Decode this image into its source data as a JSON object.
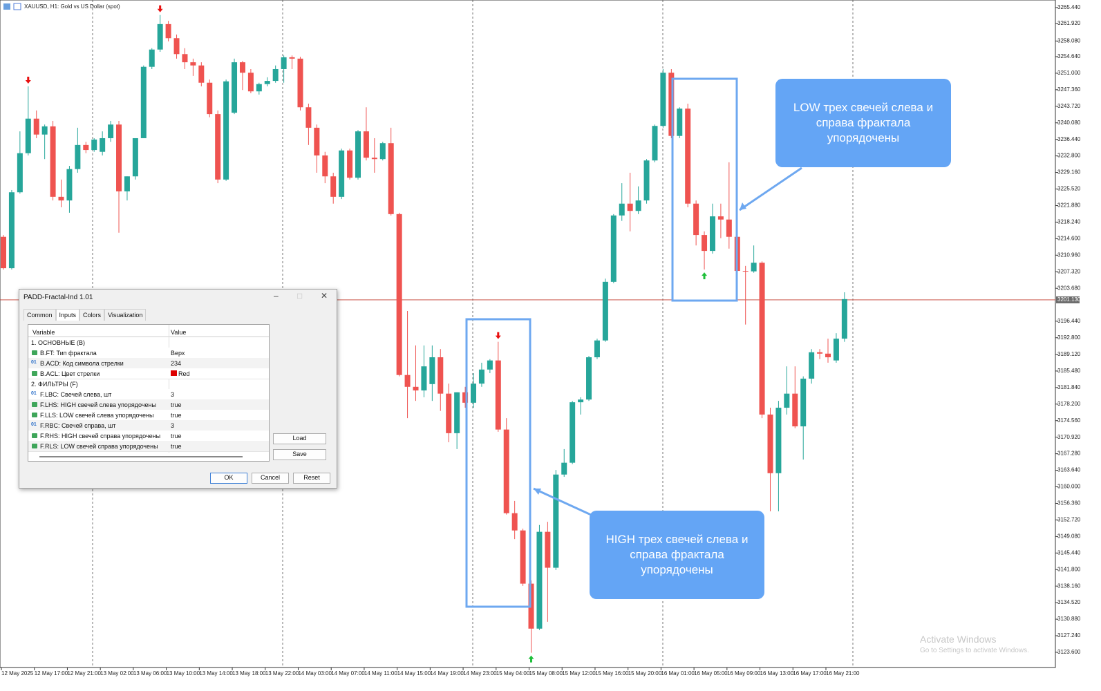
{
  "header": {
    "title": "XAUUSD, H1:  Gold vs US Dollar (spot)"
  },
  "chart_data": {
    "type": "candlestick",
    "categories": [
      "12 May 2025",
      null,
      null,
      null,
      "12 May 17:00",
      null,
      null,
      null,
      "12 May 21:00",
      null,
      null,
      null,
      "13 May 02:00",
      null,
      null,
      null,
      "13 May 06:00",
      null,
      null,
      null,
      "13 May 10:00",
      null,
      null,
      null,
      "13 May 14:00",
      null,
      null,
      null,
      "13 May 18:00",
      null,
      null,
      null,
      "13 May 22:00",
      null,
      null,
      null,
      "14 May 03:00",
      null,
      null,
      null,
      "14 May 07:00",
      null,
      null,
      null,
      "14 May 11:00",
      null,
      null,
      null,
      "14 May 15:00",
      null,
      null,
      null,
      "14 May 19:00",
      null,
      null,
      null,
      "14 May 23:00",
      null,
      null,
      null,
      "15 May 04:00",
      null,
      null,
      null,
      "15 May 08:00",
      null,
      null,
      null,
      "15 May 12:00",
      null,
      null,
      null,
      "15 May 16:00",
      null,
      null,
      null,
      "15 May 20:00",
      null,
      null,
      null,
      "16 May 01:00",
      null,
      null,
      null,
      "16 May 05:00",
      null,
      null,
      null,
      "16 May 09:00",
      null,
      null,
      null,
      "16 May 13:00",
      null,
      null,
      null,
      "16 May 17:00",
      null,
      null,
      null,
      "16 May 21:00",
      null,
      null
    ],
    "open": [
      3215.0,
      3208.1,
      3224.8,
      3233.4,
      3241.0,
      3237.5,
      3239.3,
      3223.8,
      3223.0,
      3229.9,
      3235.2,
      3234.1,
      3233.7,
      3236.7,
      3239.7,
      3225.0,
      3228.3,
      3236.7,
      3252.4,
      3256.2,
      3261.8,
      3258.7,
      3255.2,
      3253.4,
      3252.7,
      3248.9,
      3242.0,
      3227.6,
      3242.3,
      3253.4,
      3251.1,
      3247.0,
      3248.6,
      3249.3,
      3251.9,
      3254.5,
      3254.2,
      3243.5,
      3239.0,
      3232.9,
      3228.3,
      3223.8,
      3234.0,
      3228.0,
      3238.2,
      3232.4,
      3232.1,
      3235.6,
      3220.0,
      3184.6,
      3182.0,
      3181.2,
      3182.6,
      3188.5,
      3180.5,
      3171.8,
      3180.8,
      3178.5,
      3182.7,
      3185.8,
      3187.8,
      3172.6,
      3154.2,
      3150.4,
      3138.7,
      3128.8,
      3150.1,
      3142.2,
      3162.7,
      3165.3,
      3178.6,
      3179.2,
      3188.5,
      3192.2,
      3205.1,
      3219.7,
      3222.3,
      3220.7,
      3223.0,
      3231.8,
      3239.4,
      3251.1,
      3237.2,
      3243.2,
      3222.3,
      3215.4,
      3211.9,
      3219.5,
      3218.8,
      3215.0,
      3207.5,
      3207.4,
      3209.3,
      3175.9,
      3163.0,
      3177.4,
      3180.5,
      3173.3,
      3183.8,
      3189.6,
      3189.3,
      3187.8,
      3192.6
    ],
    "high": [
      3215.4,
      3225.3,
      3238.2,
      3248.1,
      3242.8,
      3239.7,
      3240.5,
      3227.6,
      3230.6,
      3239.0,
      3235.9,
      3236.7,
      3238.2,
      3240.5,
      3240.5,
      3228.3,
      3236.7,
      3252.7,
      3256.5,
      3263.8,
      3262.5,
      3259.5,
      3256.5,
      3254.2,
      3253.4,
      3249.6,
      3242.8,
      3249.6,
      3254.2,
      3253.7,
      3251.9,
      3248.9,
      3250.1,
      3252.7,
      3254.9,
      3254.9,
      3254.6,
      3244.3,
      3239.7,
      3233.7,
      3229.1,
      3234.4,
      3234.4,
      3238.5,
      3243.5,
      3236.7,
      3235.9,
      3239.0,
      3220.3,
      3198.7,
      3191.1,
      3191.1,
      3191.1,
      3190.3,
      3182.7,
      3180.8,
      3182.0,
      3185.0,
      3187.3,
      3188.1,
      3191.9,
      3175.1,
      3156.9,
      3150.8,
      3139.4,
      3151.6,
      3152.3,
      3163.7,
      3168.3,
      3178.9,
      3179.7,
      3188.8,
      3192.6,
      3205.8,
      3220.0,
      3226.8,
      3229.1,
      3226.1,
      3232.1,
      3239.7,
      3251.9,
      3251.9,
      3243.5,
      3244.3,
      3223.0,
      3216.2,
      3222.3,
      3222.3,
      3231.4,
      3215.4,
      3208.6,
      3213.1,
      3209.6,
      3177.4,
      3178.9,
      3186.5,
      3186.5,
      3184.3,
      3190.3,
      3190.3,
      3192.6,
      3193.8,
      3202.8
    ],
    "low": [
      3207.8,
      3207.8,
      3224.5,
      3232.9,
      3236.7,
      3232.1,
      3223.0,
      3221.5,
      3220.3,
      3229.1,
      3233.4,
      3233.7,
      3232.9,
      3235.9,
      3215.9,
      3223.0,
      3227.6,
      3236.7,
      3251.9,
      3255.7,
      3258.0,
      3254.2,
      3251.9,
      3250.4,
      3248.1,
      3241.3,
      3226.8,
      3227.3,
      3242.0,
      3247.3,
      3246.6,
      3246.3,
      3248.1,
      3248.9,
      3248.9,
      3251.9,
      3242.8,
      3235.2,
      3229.1,
      3226.8,
      3222.3,
      3223.3,
      3227.6,
      3227.6,
      3231.8,
      3229.1,
      3231.8,
      3219.7,
      3184.3,
      3175.1,
      3178.9,
      3179.7,
      3178.9,
      3176.7,
      3169.8,
      3168.3,
      3177.4,
      3177.4,
      3182.0,
      3185.0,
      3172.1,
      3153.9,
      3148.5,
      3138.2,
      3123.5,
      3128.5,
      3130.3,
      3141.7,
      3162.2,
      3165.0,
      3175.9,
      3178.9,
      3188.1,
      3191.9,
      3204.8,
      3218.5,
      3216.2,
      3220.0,
      3222.3,
      3231.4,
      3239.0,
      3236.7,
      3236.7,
      3221.5,
      3213.1,
      3207.8,
      3211.3,
      3214.7,
      3212.4,
      3207.1,
      3195.7,
      3207.1,
      3175.1,
      3154.6,
      3154.6,
      3175.9,
      3172.9,
      3166.0,
      3182.7,
      3188.1,
      3187.3,
      3187.3,
      3191.9
    ],
    "close": [
      3208.1,
      3224.8,
      3233.4,
      3241.0,
      3237.5,
      3239.3,
      3223.8,
      3223.0,
      3229.9,
      3235.2,
      3234.1,
      3236.4,
      3236.7,
      3239.7,
      3225.0,
      3228.3,
      3236.7,
      3252.4,
      3256.2,
      3261.8,
      3258.7,
      3255.2,
      3253.4,
      3252.7,
      3248.9,
      3242.0,
      3227.6,
      3249.2,
      3253.4,
      3251.1,
      3247.0,
      3248.6,
      3249.3,
      3251.9,
      3254.5,
      3254.2,
      3243.5,
      3239.0,
      3232.9,
      3228.3,
      3223.8,
      3234.0,
      3228.0,
      3238.2,
      3232.4,
      3232.1,
      3235.6,
      3220.0,
      3184.6,
      3182.0,
      3181.2,
      3186.5,
      3188.5,
      3180.5,
      3171.8,
      3180.8,
      3178.5,
      3182.7,
      3185.8,
      3187.8,
      3172.6,
      3154.2,
      3150.4,
      3138.7,
      3128.8,
      3150.1,
      3142.2,
      3162.7,
      3165.3,
      3178.6,
      3179.2,
      3188.5,
      3192.2,
      3205.1,
      3219.7,
      3222.3,
      3220.7,
      3223.0,
      3231.8,
      3239.4,
      3251.1,
      3237.2,
      3243.2,
      3222.3,
      3215.4,
      3211.9,
      3219.5,
      3218.8,
      3215.0,
      3207.5,
      3207.4,
      3209.3,
      3175.9,
      3163.0,
      3177.4,
      3180.5,
      3173.3,
      3183.8,
      3189.6,
      3189.3,
      3188.5,
      3192.6,
      3201.3
    ],
    "up_color": "#26a69a",
    "down_color": "#ef5350",
    "ylim": [
      3120.4,
      3267.1
    ],
    "yticks": [
      {
        "value": 3265.44,
        "label": "3265.440"
      },
      {
        "value": 3261.92,
        "label": "3261.920"
      },
      {
        "value": 3258.08,
        "label": "3258.080"
      },
      {
        "value": 3254.64,
        "label": "3254.640"
      },
      {
        "value": 3251.0,
        "label": "3251.000"
      },
      {
        "value": 3247.36,
        "label": "3247.360"
      },
      {
        "value": 3243.72,
        "label": "3243.720"
      },
      {
        "value": 3240.08,
        "label": "3240.080"
      },
      {
        "value": 3236.44,
        "label": "3236.440"
      },
      {
        "value": 3232.8,
        "label": "3232.800"
      },
      {
        "value": 3229.16,
        "label": "3229.160"
      },
      {
        "value": 3225.52,
        "label": "3225.520"
      },
      {
        "value": 3221.88,
        "label": "3221.880"
      },
      {
        "value": 3218.24,
        "label": "3218.240"
      },
      {
        "value": 3214.6,
        "label": "3214.600"
      },
      {
        "value": 3210.96,
        "label": "3210.960"
      },
      {
        "value": 3207.32,
        "label": "3207.320"
      },
      {
        "value": 3203.68,
        "label": "3203.680"
      },
      {
        "value": 3196.44,
        "label": "3196.440"
      },
      {
        "value": 3192.8,
        "label": "3192.800"
      },
      {
        "value": 3189.12,
        "label": "3189.120"
      },
      {
        "value": 3185.48,
        "label": "3185.480"
      },
      {
        "value": 3181.84,
        "label": "3181.840"
      },
      {
        "value": 3178.2,
        "label": "3178.200"
      },
      {
        "value": 3174.56,
        "label": "3174.560"
      },
      {
        "value": 3170.92,
        "label": "3170.920"
      },
      {
        "value": 3167.28,
        "label": "3167.280"
      },
      {
        "value": 3163.64,
        "label": "3163.640"
      },
      {
        "value": 3160.0,
        "label": "3160.000"
      },
      {
        "value": 3156.36,
        "label": "3156.360"
      },
      {
        "value": 3152.72,
        "label": "3152.720"
      },
      {
        "value": 3149.08,
        "label": "3149.080"
      },
      {
        "value": 3145.44,
        "label": "3145.440"
      },
      {
        "value": 3141.8,
        "label": "3141.800"
      },
      {
        "value": 3138.16,
        "label": "3138.160"
      },
      {
        "value": 3134.52,
        "label": "3134.520"
      },
      {
        "value": 3130.88,
        "label": "3130.880"
      },
      {
        "value": 3127.24,
        "label": "3127.240"
      },
      {
        "value": 3123.6,
        "label": "3123.600"
      }
    ],
    "current_price": {
      "value": 3201.13,
      "label": "3201.130"
    },
    "fractals": {
      "up": [
        64,
        85
      ],
      "down": [
        3,
        19,
        60
      ],
      "up_color": "#1fbf3a",
      "down_color": "#e81010"
    },
    "annotations": [
      "LOW трех свечей слева и справа фрактала упорядочены",
      "HIGH трех свечей слева и справа фрактала упорядочены"
    ]
  },
  "dialog": {
    "title": "PADD-Fractal-Ind 1.01",
    "tabs": [
      "Common",
      "Inputs",
      "Colors",
      "Visualization"
    ],
    "columns": [
      "Variable",
      "Value"
    ],
    "rows": [
      {
        "variable": "1. ОСНОВНЫЕ (B)"
      },
      {
        "variable": "B.FT: Тип фрактала",
        "value": "Верх"
      },
      {
        "icon": "01",
        "variable": "B.ACD: Код символа стрелки",
        "value": "234"
      },
      {
        "variable": "B.ACL: Цвет стрелки",
        "value": "Red"
      },
      {
        "variable": "2. ФИЛЬТРЫ (F)"
      },
      {
        "icon": "01",
        "variable": "F.LBC: Свечей слева, шт",
        "value": "3"
      },
      {
        "variable": "F.LHS: HIGH свечей слева упорядочены",
        "value": "true"
      },
      {
        "variable": "F.LLS: LOW свечей слева упорядочены",
        "value": "true"
      },
      {
        "icon": "01",
        "variable": "F.RBC: Свечей справа, шт",
        "value": "3"
      },
      {
        "variable": "F.RHS: HIGH свечей справа упорядочены",
        "value": "true"
      },
      {
        "variable": "F.RLS: LOW свечей справа упорядочены",
        "value": "true"
      }
    ],
    "side_buttons": [
      "Load",
      "Save"
    ],
    "buttons": [
      "OK",
      "Cancel",
      "Reset"
    ]
  },
  "watermark": {
    "title": "Activate Windows",
    "subtitle": "Go to Settings to activate Windows."
  }
}
